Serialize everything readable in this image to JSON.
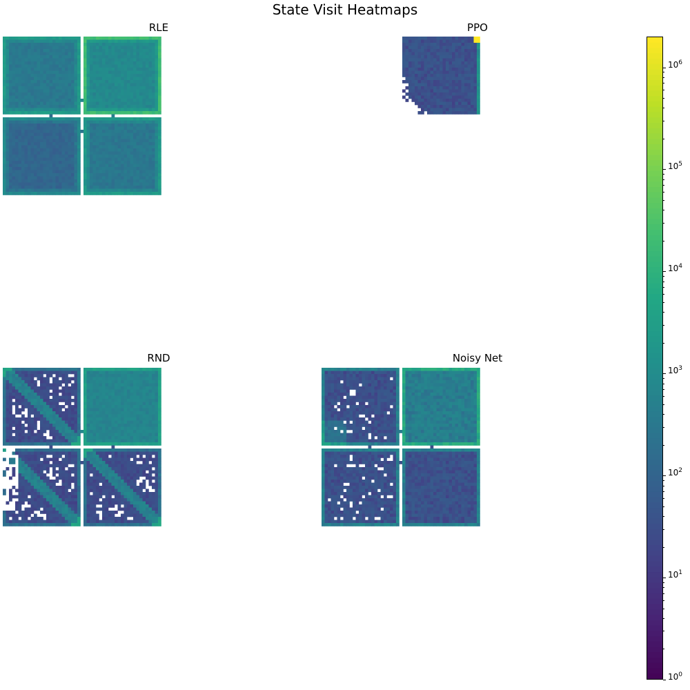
{
  "title": "State Visit Heatmaps",
  "panels": [
    {
      "name": "RLE",
      "key": "rle"
    },
    {
      "name": "PPO",
      "key": "ppo"
    },
    {
      "name": "RND",
      "key": "rnd"
    },
    {
      "name": "Noisy Net",
      "key": "noisy"
    }
  ],
  "chart_data": {
    "type": "heatmap",
    "title": "State Visit Heatmaps",
    "colormap": "viridis",
    "color_scale": "log",
    "color_range": [
      1,
      2000000
    ],
    "colorbar_ticks": [
      {
        "value": 1,
        "base": "10",
        "exp": "0"
      },
      {
        "value": 10,
        "base": "10",
        "exp": "1"
      },
      {
        "value": 100,
        "base": "10",
        "exp": "2"
      },
      {
        "value": 1000,
        "base": "10",
        "exp": "3"
      },
      {
        "value": 10000,
        "base": "10",
        "exp": "4"
      },
      {
        "value": 100000,
        "base": "10",
        "exp": "5"
      },
      {
        "value": 1000000,
        "base": "10",
        "exp": "6"
      }
    ],
    "grid_size": [
      51,
      51
    ],
    "layout": "four rooms with doorways",
    "panels": [
      {
        "name": "RLE",
        "coverage": "full",
        "typical_visits": 300,
        "corner_visits": 20000
      },
      {
        "name": "PPO",
        "coverage": "top-right room only",
        "typical_visits": 50,
        "corner_visits": 2000000
      },
      {
        "name": "RND",
        "coverage": "partial, diagonal streaks",
        "typical_visits": 30,
        "corner_visits": 60000
      },
      {
        "name": "Noisy Net",
        "coverage": "mostly full",
        "typical_visits": 80,
        "corner_visits": 30000
      }
    ]
  }
}
